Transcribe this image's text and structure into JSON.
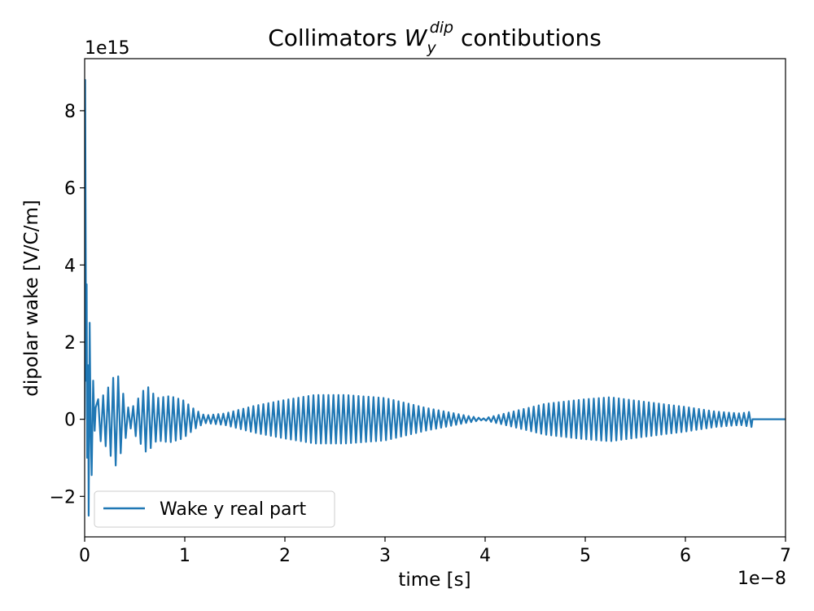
{
  "chart_data": {
    "type": "line",
    "title_parts": [
      "Collimators ",
      "W",
      "y",
      "dip",
      " contibutions"
    ],
    "xlabel": "time [s]",
    "ylabel": "dipolar wake [V/C/m]",
    "x_offset_label": "1e−8",
    "y_offset_label": "1e15",
    "x_scale": 1e-08,
    "y_scale": 1000000000000000.0,
    "xlim": [
      0,
      7
    ],
    "ylim": [
      -3.05,
      9.35
    ],
    "x_ticks": [
      0,
      1,
      2,
      3,
      4,
      5,
      6,
      7
    ],
    "x_tick_labels": [
      "0",
      "1",
      "2",
      "3",
      "4",
      "5",
      "6",
      "7"
    ],
    "y_ticks": [
      -2,
      0,
      2,
      4,
      6,
      8
    ],
    "y_tick_labels": [
      "−2",
      "0",
      "2",
      "4",
      "6",
      "8"
    ],
    "grid": false,
    "legend_position": "lower-left",
    "series": [
      {
        "name": "Wake y real part",
        "color": "#1f77b4",
        "carrier_period": 0.05,
        "spikes": [
          [
            0.0,
            0.0
          ],
          [
            0.005,
            8.8
          ],
          [
            0.015,
            1.0
          ],
          [
            0.02,
            3.5
          ],
          [
            0.025,
            -1.0
          ],
          [
            0.035,
            1.4
          ],
          [
            0.04,
            -2.5
          ],
          [
            0.05,
            2.5
          ],
          [
            0.06,
            -0.2
          ],
          [
            0.07,
            -1.45
          ],
          [
            0.085,
            1.0
          ],
          [
            0.1,
            -0.3
          ],
          [
            0.11,
            0.3
          ]
        ],
        "envelope": [
          [
            0.1,
            0.45
          ],
          [
            0.2,
            0.65
          ],
          [
            0.32,
            1.25
          ],
          [
            0.38,
            0.7
          ],
          [
            0.45,
            0.2
          ],
          [
            0.62,
            0.88
          ],
          [
            0.72,
            0.55
          ],
          [
            0.85,
            0.6
          ],
          [
            0.98,
            0.5
          ],
          [
            1.1,
            0.25
          ],
          [
            1.2,
            0.1
          ],
          [
            1.4,
            0.15
          ],
          [
            1.7,
            0.35
          ],
          [
            2.0,
            0.5
          ],
          [
            2.3,
            0.63
          ],
          [
            2.6,
            0.63
          ],
          [
            3.0,
            0.55
          ],
          [
            3.4,
            0.3
          ],
          [
            3.8,
            0.1
          ],
          [
            3.98,
            0.02
          ],
          [
            4.2,
            0.15
          ],
          [
            4.6,
            0.4
          ],
          [
            5.0,
            0.52
          ],
          [
            5.25,
            0.57
          ],
          [
            5.6,
            0.45
          ],
          [
            6.0,
            0.32
          ],
          [
            6.3,
            0.2
          ],
          [
            6.55,
            0.15
          ],
          [
            6.66,
            0.2
          ],
          [
            6.67,
            0.0
          ],
          [
            7.0,
            0.0
          ]
        ]
      }
    ]
  }
}
